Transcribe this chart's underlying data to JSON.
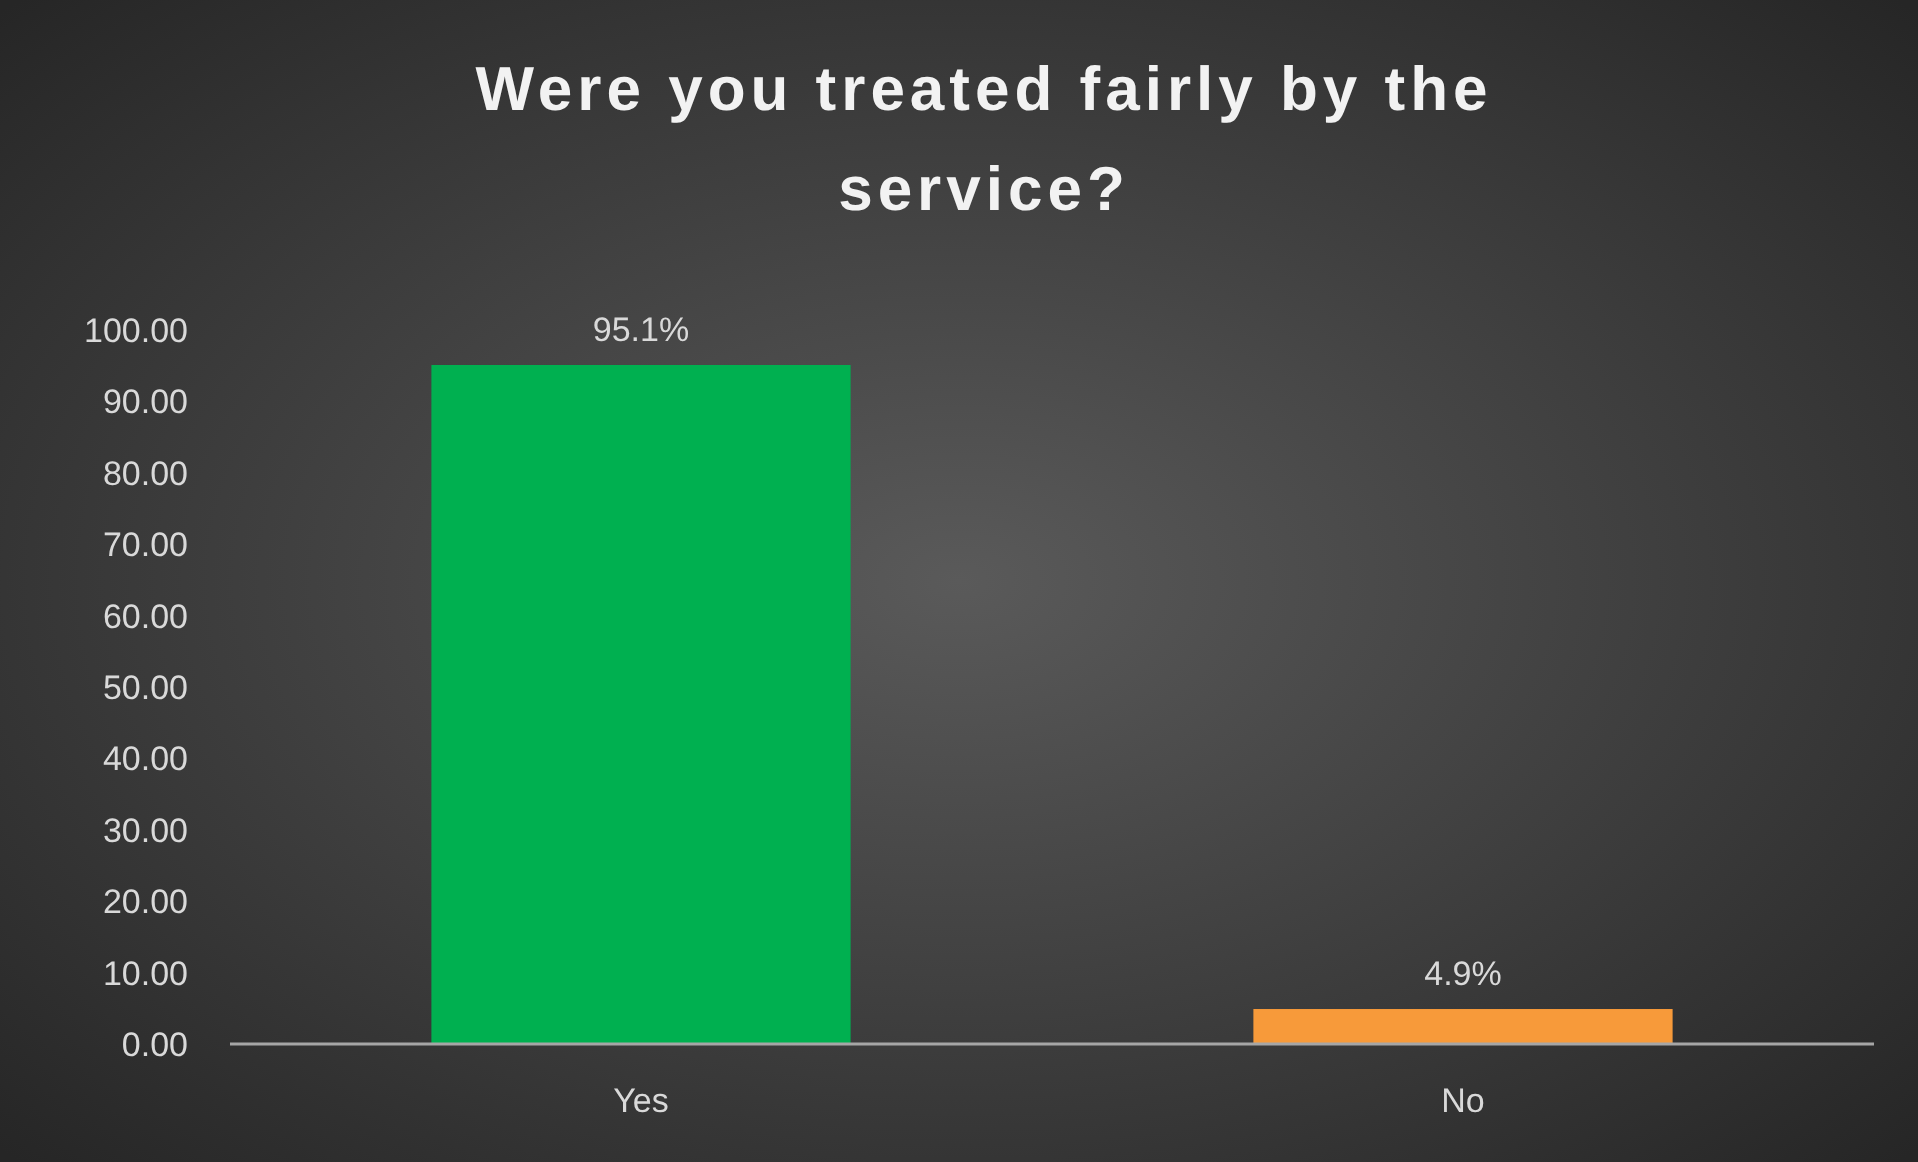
{
  "chart_data": {
    "type": "bar",
    "title": "Were you treated fairly by the service?",
    "categories": [
      "Yes",
      "No"
    ],
    "values": [
      95.1,
      4.9
    ],
    "colors": [
      "#00b050",
      "#f79a3a"
    ],
    "value_labels": [
      "95.1%",
      "4.9%"
    ],
    "ylim": [
      0,
      100
    ],
    "yticks": [
      {
        "value": 0,
        "label": "0.00"
      },
      {
        "value": 10,
        "label": "10.00"
      },
      {
        "value": 20,
        "label": "20.00"
      },
      {
        "value": 30,
        "label": "30.00"
      },
      {
        "value": 40,
        "label": "40.00"
      },
      {
        "value": 50,
        "label": "50.00"
      },
      {
        "value": 60,
        "label": "60.00"
      },
      {
        "value": 70,
        "label": "70.00"
      },
      {
        "value": 80,
        "label": "80.00"
      },
      {
        "value": 90,
        "label": "90.00"
      },
      {
        "value": 100,
        "label": "100.00"
      }
    ],
    "grid": false
  }
}
